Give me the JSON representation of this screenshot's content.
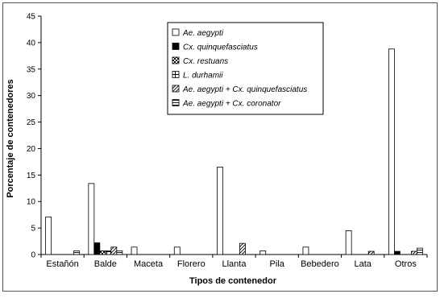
{
  "chart_data": {
    "type": "bar",
    "xlabel": "Tipos de contenedor",
    "ylabel": "Porcentaje de contenedores",
    "ylim": [
      0,
      45
    ],
    "yticks": [
      0,
      5,
      10,
      15,
      20,
      25,
      30,
      35,
      40,
      45
    ],
    "grid": false,
    "legend_position": "top-center",
    "categories": [
      "Estañón",
      "Balde",
      "Maceta",
      "Florero",
      "Llanta",
      "Pila",
      "Bebedero",
      "Lata",
      "Otros"
    ],
    "series": [
      {
        "name": "Ae. aegypti",
        "pattern": "white",
        "values": [
          7.1,
          13.4,
          1.4,
          1.4,
          16.5,
          0.7,
          1.4,
          4.5,
          38.8
        ]
      },
      {
        "name": "Cx. quinquefasciatus",
        "pattern": "black",
        "values": [
          0,
          2.2,
          0,
          0,
          0,
          0,
          0,
          0,
          0.6
        ]
      },
      {
        "name": "Cx. restuans",
        "pattern": "checker",
        "values": [
          0,
          0.7,
          0,
          0,
          0,
          0,
          0,
          0,
          0
        ]
      },
      {
        "name": "L. durhamii",
        "pattern": "cross",
        "values": [
          0,
          0.7,
          0,
          0,
          0,
          0,
          0,
          0,
          0
        ]
      },
      {
        "name": "Ae. aegypti + Cx. quinquefasciatus",
        "pattern": "diagonal",
        "values": [
          0,
          1.4,
          0,
          0,
          2.1,
          0,
          0,
          0.6,
          0.6
        ]
      },
      {
        "name": "Ae. aegypti + Cx. coronator",
        "pattern": "hlines",
        "values": [
          0.7,
          0.7,
          0,
          0,
          0,
          0,
          0,
          0,
          1.2
        ]
      }
    ]
  }
}
